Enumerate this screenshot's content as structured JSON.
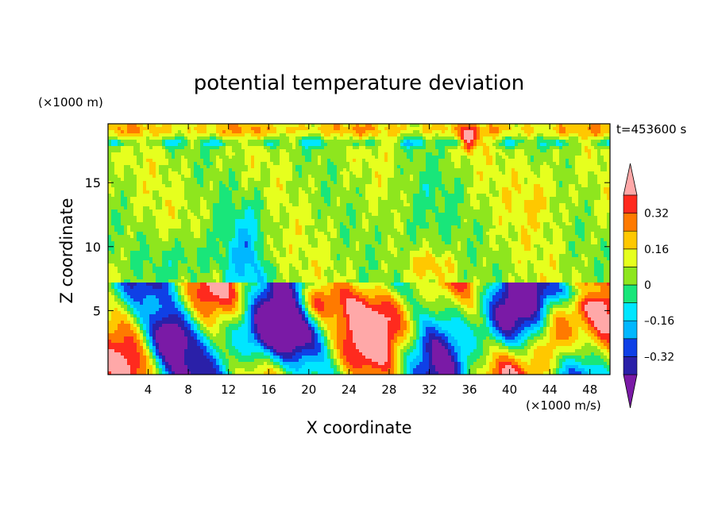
{
  "chart_data": {
    "type": "heatmap",
    "title": "potential temperature deviation",
    "xlabel": "X coordinate",
    "ylabel": "Z coordinate",
    "x_unit": "(×1000 m/s)",
    "y_unit": "(×1000 m)",
    "time_label": "t=453600 s",
    "xlim": [
      0,
      50
    ],
    "ylim": [
      0,
      19.6
    ],
    "x_ticks": [
      4,
      8,
      12,
      16,
      20,
      24,
      28,
      32,
      36,
      40,
      44,
      48
    ],
    "y_ticks": [
      5,
      10,
      15
    ],
    "colorbar": {
      "levels": [
        -0.4,
        -0.32,
        -0.24,
        -0.16,
        -0.08,
        0,
        0.08,
        0.16,
        0.24,
        0.32,
        0.4
      ],
      "tick_labels": [
        "0.32",
        "0.16",
        "0",
        "–0.16",
        "–0.32"
      ],
      "tick_values": [
        0.32,
        0.16,
        0,
        -0.16,
        -0.32
      ],
      "colors": [
        "#7a1aa6",
        "#2a20a8",
        "#0f40e6",
        "#00b7ff",
        "#00e6ff",
        "#19e67a",
        "#8ee61e",
        "#e6ff1e",
        "#ffc800",
        "#ff7a00",
        "#ff2a1e",
        "#ffa8a8"
      ],
      "extend": "both"
    },
    "structure": "upper layer (z>7.3) mostly weak positive/green with cyan columns and yellow near top; lower layer (z<7.3) strong alternating tilted bands of pink/red positive and purple/blue negative anomalies"
  }
}
